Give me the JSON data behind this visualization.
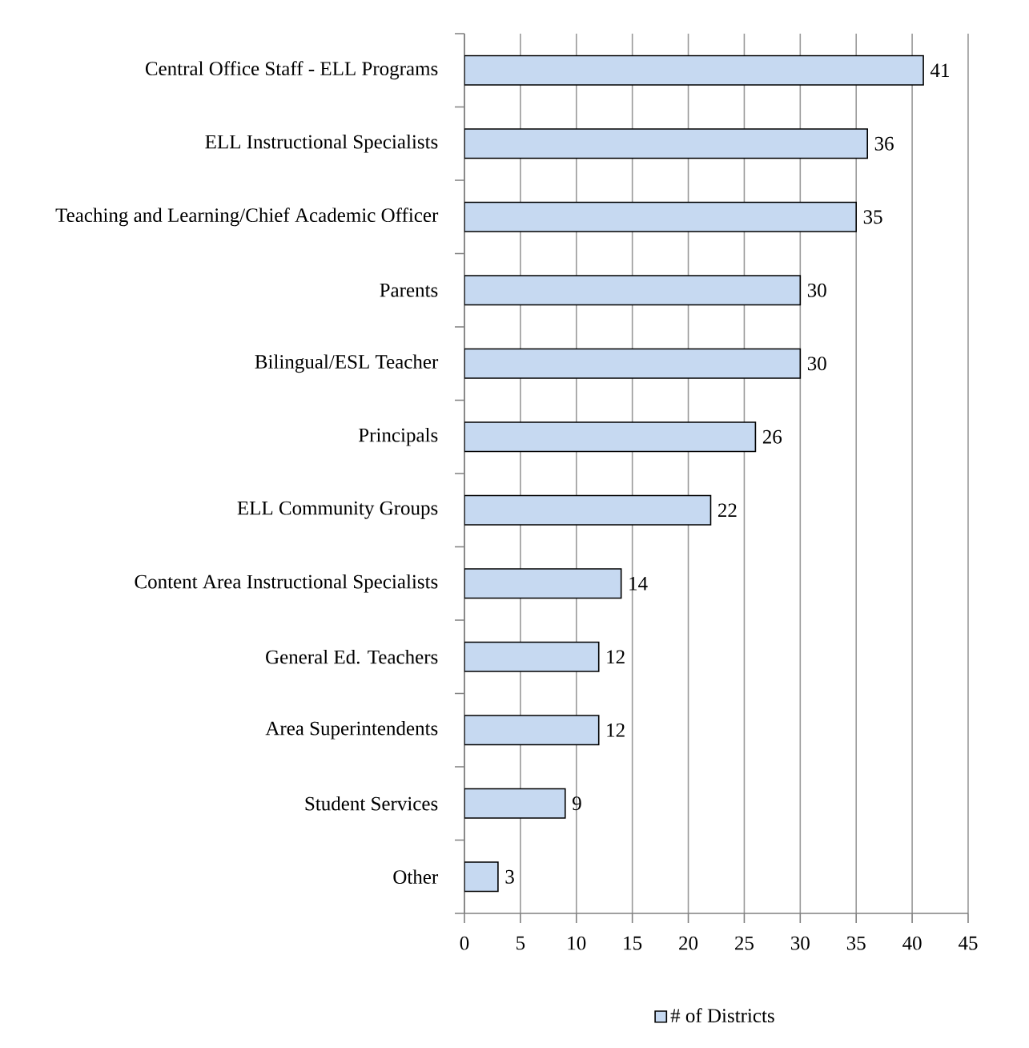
{
  "chart_data": {
    "type": "bar",
    "orientation": "horizontal",
    "categories": [
      "Central Office Staff - ELL Programs",
      "ELL Instructional Specialists",
      "Teaching and Learning/Chief Academic Officer",
      "Parents",
      "Bilingual/ESL Teacher",
      "Principals",
      "ELL Community Groups",
      "Content Area Instructional Specialists",
      "General Ed. Teachers",
      "Area Superintendents",
      "Student Services",
      "Other"
    ],
    "series": [
      {
        "name": "# of Districts",
        "color": "#c6d9f1",
        "values": [
          41,
          36,
          35,
          30,
          30,
          26,
          22,
          14,
          12,
          12,
          9,
          3
        ]
      }
    ],
    "xlim": [
      0,
      45
    ],
    "xticks": [
      0,
      5,
      10,
      15,
      20,
      25,
      30,
      35,
      40,
      45
    ],
    "grid": "x",
    "legend": "bottom",
    "data_labels": true
  }
}
